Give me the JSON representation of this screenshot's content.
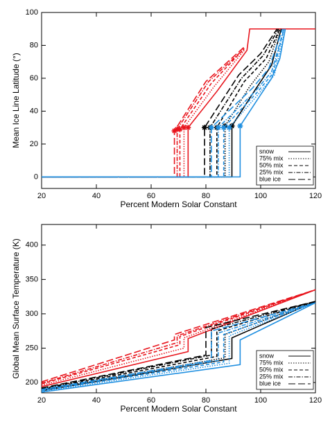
{
  "chart_data": [
    {
      "type": "line",
      "xlabel": "Percent Modern Solar Constant",
      "ylabel": "Mean Ice Line Latitude (°)",
      "xlim": [
        20,
        120
      ],
      "ylim": [
        -7,
        100
      ],
      "xticks": [
        20,
        40,
        60,
        80,
        100,
        120
      ],
      "yticks": [
        0,
        20,
        40,
        60,
        80,
        100
      ],
      "marker": "star",
      "legend": {
        "position": "lower right",
        "entries": [
          {
            "name": "snow",
            "dash": "solid"
          },
          {
            "name": "75% mix",
            "dash": "dotted"
          },
          {
            "name": "50% mix",
            "dash": "dashed"
          },
          {
            "name": "25% mix",
            "dash": "dashdot"
          },
          {
            "name": "blue ice",
            "dash": "longdash"
          }
        ]
      },
      "series": [
        {
          "color": "#e8141c",
          "dash": "longdash",
          "x": [
            20,
            68.5,
            68.5,
            80,
            94
          ],
          "values": [
            0,
            0,
            28,
            58,
            79
          ]
        },
        {
          "color": "#e8141c",
          "dash": "dashdot",
          "x": [
            20,
            69.5,
            69.5,
            81,
            94
          ],
          "values": [
            0,
            0,
            29,
            58,
            78
          ]
        },
        {
          "color": "#e8141c",
          "dash": "dashed",
          "x": [
            20,
            70.5,
            70.5,
            82,
            94
          ],
          "values": [
            0,
            0,
            29,
            57,
            78
          ]
        },
        {
          "color": "#e8141c",
          "dash": "dotted",
          "x": [
            20,
            72,
            72,
            83,
            94
          ],
          "values": [
            0,
            0,
            30,
            55,
            77
          ]
        },
        {
          "color": "#e8141c",
          "dash": "solid",
          "x": [
            20,
            73.5,
            73.5,
            84,
            95,
            96,
            120
          ],
          "values": [
            0,
            0,
            30,
            52,
            77,
            90,
            90
          ]
        },
        {
          "color": "#000000",
          "dash": "longdash",
          "x": [
            20,
            79.5,
            79.5,
            92,
            100,
            106
          ],
          "values": [
            0,
            0,
            30,
            62,
            75,
            90
          ]
        },
        {
          "color": "#000000",
          "dash": "dashdot",
          "x": [
            20,
            81.5,
            81.5,
            93,
            101,
            106.5
          ],
          "values": [
            0,
            0,
            30,
            60,
            74,
            90
          ]
        },
        {
          "color": "#000000",
          "dash": "dashed",
          "x": [
            20,
            84,
            84,
            94,
            102,
            107
          ],
          "values": [
            0,
            0,
            30,
            58,
            72,
            90
          ]
        },
        {
          "color": "#000000",
          "dash": "dotted",
          "x": [
            20,
            87,
            87,
            96,
            103,
            107
          ],
          "values": [
            0,
            0,
            31,
            55,
            70,
            90
          ]
        },
        {
          "color": "#000000",
          "dash": "solid",
          "x": [
            20,
            89.5,
            89.5,
            98,
            104,
            107.5
          ],
          "values": [
            0,
            0,
            31,
            53,
            68,
            90
          ]
        },
        {
          "color": "#1f8fe0",
          "dash": "longdash",
          "x": [
            20,
            82,
            82,
            97,
            103,
            108
          ],
          "values": [
            0,
            0,
            30,
            54,
            66,
            90
          ]
        },
        {
          "color": "#1f8fe0",
          "dash": "dashdot",
          "x": [
            20,
            84.5,
            84.5,
            98,
            104,
            108.5
          ],
          "values": [
            0,
            0,
            30,
            52,
            64,
            90
          ]
        },
        {
          "color": "#1f8fe0",
          "dash": "dashed",
          "x": [
            20,
            86.5,
            86.5,
            98.5,
            104.5,
            108.5
          ],
          "values": [
            0,
            0,
            30,
            51,
            63,
            90
          ]
        },
        {
          "color": "#1f8fe0",
          "dash": "dotted",
          "x": [
            20,
            88.5,
            88.5,
            99,
            105,
            109
          ],
          "values": [
            0,
            0,
            30,
            50,
            62,
            90
          ]
        },
        {
          "color": "#1f8fe0",
          "dash": "solid",
          "x": [
            20,
            92.5,
            92.5,
            100,
            104,
            107,
            109
          ],
          "values": [
            0,
            0,
            31,
            50,
            60,
            72,
            90
          ]
        }
      ]
    },
    {
      "type": "line",
      "xlabel": "Percent Modern Solar Constant",
      "ylabel": "Global Mean Surface Temperature (K)",
      "xlim": [
        20,
        120
      ],
      "ylim": [
        185,
        430
      ],
      "xticks": [
        20,
        40,
        60,
        80,
        100,
        120
      ],
      "yticks": [
        200,
        250,
        300,
        350,
        400
      ],
      "legend": {
        "position": "lower right",
        "entries": [
          {
            "name": "snow",
            "dash": "solid"
          },
          {
            "name": "75% mix",
            "dash": "dotted"
          },
          {
            "name": "50% mix",
            "dash": "dashed"
          },
          {
            "name": "25% mix",
            "dash": "dashdot"
          },
          {
            "name": "blue ice",
            "dash": "longdash"
          }
        ]
      },
      "series": [
        {
          "color": "#e8141c",
          "dash": "longdash",
          "x": [
            20,
            68.5,
            68.5,
            120
          ],
          "values": [
            201,
            262,
            270,
            335
          ]
        },
        {
          "color": "#e8141c",
          "dash": "dashdot",
          "x": [
            20,
            69.5,
            69.5,
            120
          ],
          "values": [
            199,
            258,
            268,
            335
          ]
        },
        {
          "color": "#e8141c",
          "dash": "dashed",
          "x": [
            20,
            70.5,
            70.5,
            120
          ],
          "values": [
            198,
            255,
            267,
            335
          ]
        },
        {
          "color": "#e8141c",
          "dash": "dotted",
          "x": [
            20,
            72,
            72,
            120
          ],
          "values": [
            196,
            250,
            265,
            335
          ]
        },
        {
          "color": "#e8141c",
          "dash": "solid",
          "x": [
            20,
            73.5,
            73.5,
            120
          ],
          "values": [
            194,
            245,
            264,
            335
          ]
        },
        {
          "color": "#000000",
          "dash": "longdash",
          "x": [
            20,
            80,
            80,
            120
          ],
          "values": [
            192,
            240,
            280,
            318
          ]
        },
        {
          "color": "#000000",
          "dash": "dashdot",
          "x": [
            20,
            82,
            82,
            120
          ],
          "values": [
            191,
            240,
            278,
            318
          ]
        },
        {
          "color": "#000000",
          "dash": "dashed",
          "x": [
            20,
            84,
            84,
            120
          ],
          "values": [
            190,
            238,
            275,
            318
          ]
        },
        {
          "color": "#000000",
          "dash": "dotted",
          "x": [
            20,
            87,
            87,
            120
          ],
          "values": [
            189,
            236,
            270,
            318
          ]
        },
        {
          "color": "#000000",
          "dash": "solid",
          "x": [
            20,
            89.5,
            89.5,
            120
          ],
          "values": [
            188,
            235,
            265,
            318
          ]
        },
        {
          "color": "#1f8fe0",
          "dash": "longdash",
          "x": [
            20,
            82,
            82,
            120
          ],
          "values": [
            190,
            232,
            275,
            316
          ]
        },
        {
          "color": "#1f8fe0",
          "dash": "dashdot",
          "x": [
            20,
            84.5,
            84.5,
            120
          ],
          "values": [
            189,
            232,
            272,
            316
          ]
        },
        {
          "color": "#1f8fe0",
          "dash": "dashed",
          "x": [
            20,
            86.5,
            86.5,
            120
          ],
          "values": [
            188,
            230,
            270,
            316
          ]
        },
        {
          "color": "#1f8fe0",
          "dash": "dotted",
          "x": [
            20,
            88.5,
            88.5,
            120
          ],
          "values": [
            187,
            228,
            268,
            316
          ]
        },
        {
          "color": "#1f8fe0",
          "dash": "solid",
          "x": [
            20,
            92.5,
            92.5,
            120
          ],
          "values": [
            186,
            226,
            262,
            316
          ]
        }
      ]
    }
  ]
}
